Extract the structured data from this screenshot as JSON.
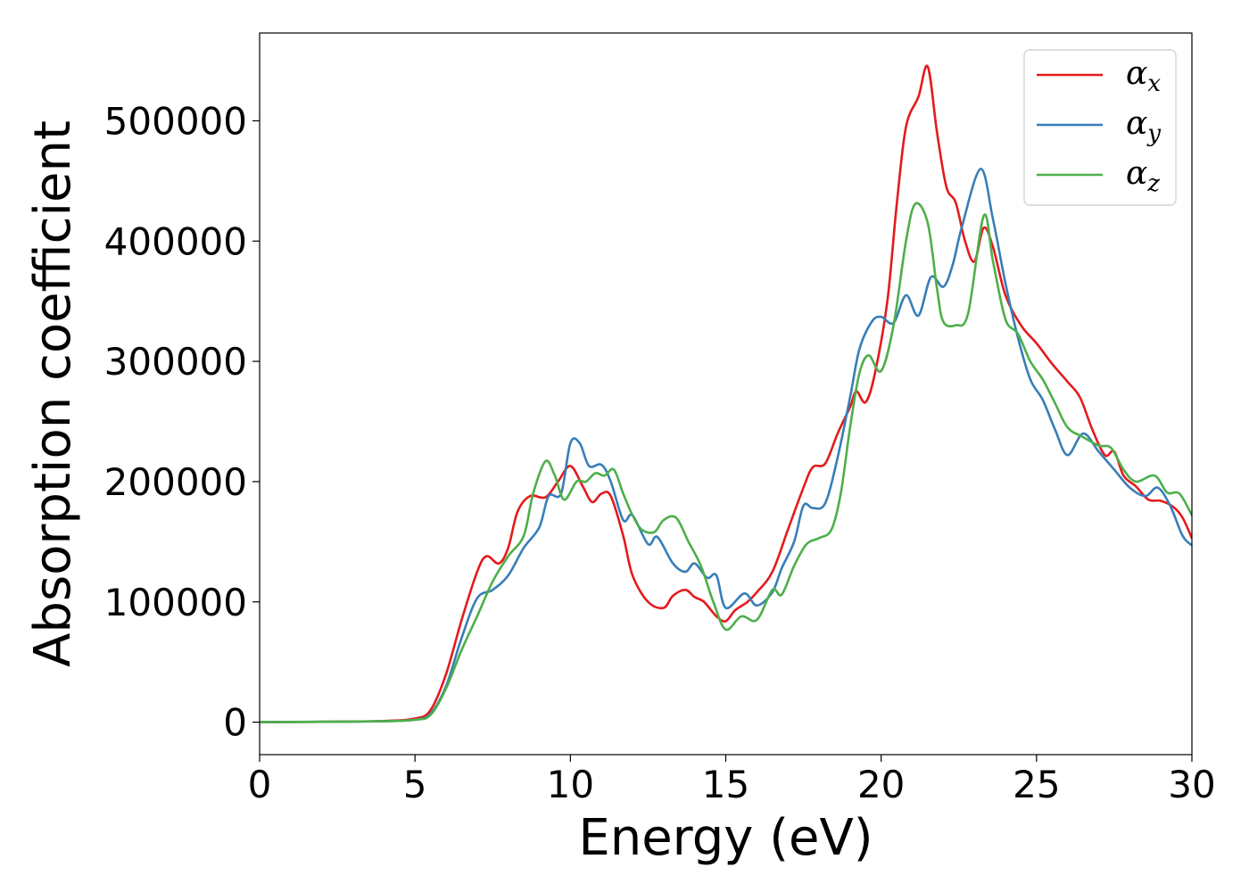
{
  "chart_data": {
    "type": "line",
    "title": "",
    "xlabel": "Energy (eV)",
    "ylabel": "Absorption coefficient",
    "xlim": [
      0,
      30
    ],
    "ylim": [
      -27000,
      573000
    ],
    "xticks": [
      0,
      5,
      10,
      15,
      20,
      25,
      30
    ],
    "xtick_labels": [
      "0",
      "5",
      "10",
      "15",
      "20",
      "25",
      "30"
    ],
    "yticks": [
      0,
      100000,
      200000,
      300000,
      400000,
      500000
    ],
    "ytick_labels": [
      "0",
      "100000",
      "200000",
      "300000",
      "400000",
      "500000"
    ],
    "grid": false,
    "legend_position": "top-right",
    "series": [
      {
        "name": "α",
        "subscript": "x",
        "color": "#e41a1c",
        "points": [
          [
            0,
            0
          ],
          [
            2,
            300
          ],
          [
            4,
            1000
          ],
          [
            5,
            3000
          ],
          [
            5.5,
            10000
          ],
          [
            6,
            40000
          ],
          [
            6.5,
            85000
          ],
          [
            7,
            125000
          ],
          [
            7.3,
            138000
          ],
          [
            7.7,
            132000
          ],
          [
            8,
            145000
          ],
          [
            8.3,
            175000
          ],
          [
            8.7,
            188000
          ],
          [
            9.2,
            187000
          ],
          [
            9.6,
            200000
          ],
          [
            10,
            213000
          ],
          [
            10.4,
            196000
          ],
          [
            10.7,
            183000
          ],
          [
            11,
            190000
          ],
          [
            11.3,
            188000
          ],
          [
            11.7,
            155000
          ],
          [
            12,
            122000
          ],
          [
            12.5,
            100000
          ],
          [
            13,
            95000
          ],
          [
            13.3,
            105000
          ],
          [
            13.7,
            110000
          ],
          [
            14,
            104000
          ],
          [
            14.3,
            100000
          ],
          [
            14.7,
            88000
          ],
          [
            15,
            84000
          ],
          [
            15.3,
            93000
          ],
          [
            15.7,
            100000
          ],
          [
            16,
            108000
          ],
          [
            16.5,
            125000
          ],
          [
            17,
            160000
          ],
          [
            17.5,
            195000
          ],
          [
            17.8,
            212000
          ],
          [
            18.2,
            215000
          ],
          [
            18.6,
            240000
          ],
          [
            19,
            262000
          ],
          [
            19.2,
            275000
          ],
          [
            19.5,
            266000
          ],
          [
            19.8,
            290000
          ],
          [
            20.2,
            350000
          ],
          [
            20.5,
            430000
          ],
          [
            20.8,
            495000
          ],
          [
            21.2,
            520000
          ],
          [
            21.5,
            545000
          ],
          [
            21.8,
            490000
          ],
          [
            22.1,
            445000
          ],
          [
            22.4,
            432000
          ],
          [
            22.7,
            400000
          ],
          [
            23,
            383000
          ],
          [
            23.3,
            411000
          ],
          [
            23.6,
            395000
          ],
          [
            24,
            355000
          ],
          [
            24.5,
            330000
          ],
          [
            25,
            315000
          ],
          [
            25.5,
            298000
          ],
          [
            26,
            283000
          ],
          [
            26.4,
            270000
          ],
          [
            26.8,
            243000
          ],
          [
            27.2,
            222000
          ],
          [
            27.5,
            225000
          ],
          [
            27.8,
            205000
          ],
          [
            28.2,
            196000
          ],
          [
            28.6,
            185000
          ],
          [
            29,
            184000
          ],
          [
            29.4,
            179000
          ],
          [
            29.7,
            170000
          ],
          [
            30,
            153000
          ]
        ]
      },
      {
        "name": "α",
        "subscript": "y",
        "color": "#377eb8",
        "points": [
          [
            0,
            0
          ],
          [
            2,
            300
          ],
          [
            4,
            800
          ],
          [
            5,
            2000
          ],
          [
            5.5,
            7000
          ],
          [
            6,
            30000
          ],
          [
            6.5,
            70000
          ],
          [
            7,
            103000
          ],
          [
            7.5,
            110000
          ],
          [
            8,
            122000
          ],
          [
            8.5,
            145000
          ],
          [
            9,
            162000
          ],
          [
            9.3,
            188000
          ],
          [
            9.7,
            190000
          ],
          [
            10,
            232000
          ],
          [
            10.3,
            232000
          ],
          [
            10.6,
            213000
          ],
          [
            11,
            214000
          ],
          [
            11.3,
            200000
          ],
          [
            11.7,
            168000
          ],
          [
            12,
            172000
          ],
          [
            12.5,
            148000
          ],
          [
            12.8,
            154000
          ],
          [
            13.3,
            132000
          ],
          [
            13.7,
            125000
          ],
          [
            14,
            132000
          ],
          [
            14.4,
            120000
          ],
          [
            14.7,
            122000
          ],
          [
            15,
            95000
          ],
          [
            15.6,
            107000
          ],
          [
            16,
            97000
          ],
          [
            16.5,
            108000
          ],
          [
            16.8,
            128000
          ],
          [
            17.2,
            150000
          ],
          [
            17.5,
            180000
          ],
          [
            17.8,
            178000
          ],
          [
            18.2,
            182000
          ],
          [
            18.6,
            220000
          ],
          [
            19,
            270000
          ],
          [
            19.3,
            310000
          ],
          [
            19.7,
            333000
          ],
          [
            20,
            337000
          ],
          [
            20.4,
            332000
          ],
          [
            20.8,
            355000
          ],
          [
            21.2,
            338000
          ],
          [
            21.6,
            370000
          ],
          [
            22,
            362000
          ],
          [
            22.3,
            380000
          ],
          [
            22.6,
            412000
          ],
          [
            23.2,
            460000
          ],
          [
            23.6,
            418000
          ],
          [
            24,
            365000
          ],
          [
            24.4,
            320000
          ],
          [
            24.8,
            285000
          ],
          [
            25.2,
            268000
          ],
          [
            25.6,
            243000
          ],
          [
            26,
            222000
          ],
          [
            26.5,
            240000
          ],
          [
            27,
            225000
          ],
          [
            27.5,
            210000
          ],
          [
            28,
            195000
          ],
          [
            28.5,
            188000
          ],
          [
            28.9,
            195000
          ],
          [
            29.3,
            180000
          ],
          [
            29.7,
            155000
          ],
          [
            30,
            147000
          ]
        ]
      },
      {
        "name": "α",
        "subscript": "z",
        "color": "#4daf4a",
        "points": [
          [
            0,
            0
          ],
          [
            2,
            300
          ],
          [
            4,
            800
          ],
          [
            5,
            2000
          ],
          [
            5.5,
            6000
          ],
          [
            6,
            28000
          ],
          [
            6.5,
            60000
          ],
          [
            7,
            88000
          ],
          [
            7.5,
            117000
          ],
          [
            8,
            138000
          ],
          [
            8.5,
            155000
          ],
          [
            8.8,
            190000
          ],
          [
            9.2,
            217000
          ],
          [
            9.5,
            205000
          ],
          [
            9.8,
            185000
          ],
          [
            10.2,
            200000
          ],
          [
            10.5,
            200000
          ],
          [
            10.8,
            207000
          ],
          [
            11.1,
            205000
          ],
          [
            11.4,
            210000
          ],
          [
            11.7,
            190000
          ],
          [
            12,
            172000
          ],
          [
            12.3,
            160000
          ],
          [
            12.7,
            158000
          ],
          [
            13,
            168000
          ],
          [
            13.4,
            170000
          ],
          [
            13.8,
            150000
          ],
          [
            14.2,
            130000
          ],
          [
            14.6,
            100000
          ],
          [
            15,
            77000
          ],
          [
            15.5,
            88000
          ],
          [
            16,
            85000
          ],
          [
            16.5,
            110000
          ],
          [
            16.8,
            106000
          ],
          [
            17.2,
            130000
          ],
          [
            17.6,
            148000
          ],
          [
            18,
            153000
          ],
          [
            18.4,
            160000
          ],
          [
            18.7,
            190000
          ],
          [
            19,
            245000
          ],
          [
            19.3,
            290000
          ],
          [
            19.6,
            305000
          ],
          [
            20,
            292000
          ],
          [
            20.4,
            330000
          ],
          [
            20.8,
            400000
          ],
          [
            21.1,
            431000
          ],
          [
            21.5,
            415000
          ],
          [
            21.8,
            360000
          ],
          [
            22,
            333000
          ],
          [
            22.4,
            330000
          ],
          [
            22.8,
            340000
          ],
          [
            23.3,
            421000
          ],
          [
            23.6,
            383000
          ],
          [
            24,
            335000
          ],
          [
            24.4,
            323000
          ],
          [
            24.8,
            300000
          ],
          [
            25.2,
            285000
          ],
          [
            25.6,
            265000
          ],
          [
            26,
            245000
          ],
          [
            26.5,
            237000
          ],
          [
            27,
            230000
          ],
          [
            27.4,
            228000
          ],
          [
            27.8,
            210000
          ],
          [
            28.2,
            200000
          ],
          [
            28.8,
            205000
          ],
          [
            29.2,
            191000
          ],
          [
            29.6,
            190000
          ],
          [
            30,
            172000
          ]
        ]
      }
    ]
  }
}
